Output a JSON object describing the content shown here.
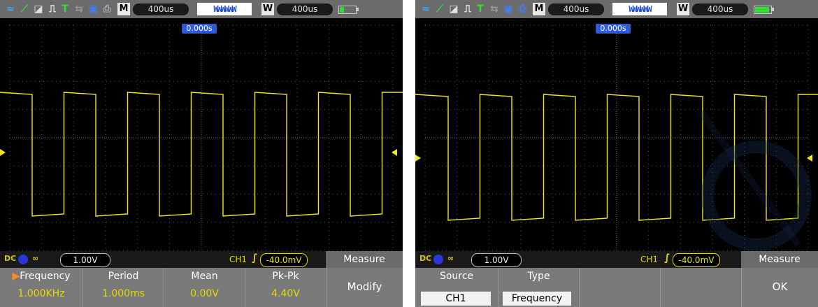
{
  "panels": [
    {
      "id": "left",
      "timebase_mode": "M",
      "timebase_value": "400us",
      "window_mode": "W",
      "window_value": "400us",
      "trigger_position": "0.000s",
      "channel_marker": "1",
      "ch_volts": "1.00V",
      "ch_label": "CH1",
      "trigger_level": "-40.0mV",
      "menu_title": "Measure",
      "soft_keys": [
        {
          "label": "Frequency",
          "value": "1.000KHz",
          "selected": true
        },
        {
          "label": "Period",
          "value": "1.000ms"
        },
        {
          "label": "Mean",
          "value": "0.00V"
        },
        {
          "label": "Pk-Pk",
          "value": "4.40V"
        },
        {
          "label": "Modify",
          "value": ""
        }
      ],
      "battery_level": 0.25
    },
    {
      "id": "right",
      "timebase_mode": "M",
      "timebase_value": "400us",
      "window_mode": "W",
      "window_value": "400us",
      "trigger_position": "0.000s",
      "channel_marker": "1",
      "ch_volts": "1.00V",
      "ch_label": "CH1",
      "trigger_level": "-40.0mV",
      "menu_title": "Measure",
      "soft_keys": [
        {
          "label": "Source",
          "value": "CH1"
        },
        {
          "label": "Type",
          "value": "Frequency"
        },
        {
          "label": "",
          "value": ""
        },
        {
          "label": "",
          "value": ""
        },
        {
          "label": "OK",
          "value": ""
        }
      ],
      "battery_level": 0.9
    }
  ],
  "colors": {
    "trace": "#f5e61e",
    "grid": "#6a6a6a",
    "accent_blue": "#2e5cd6",
    "selected_arrow": "#ff8a1e"
  }
}
